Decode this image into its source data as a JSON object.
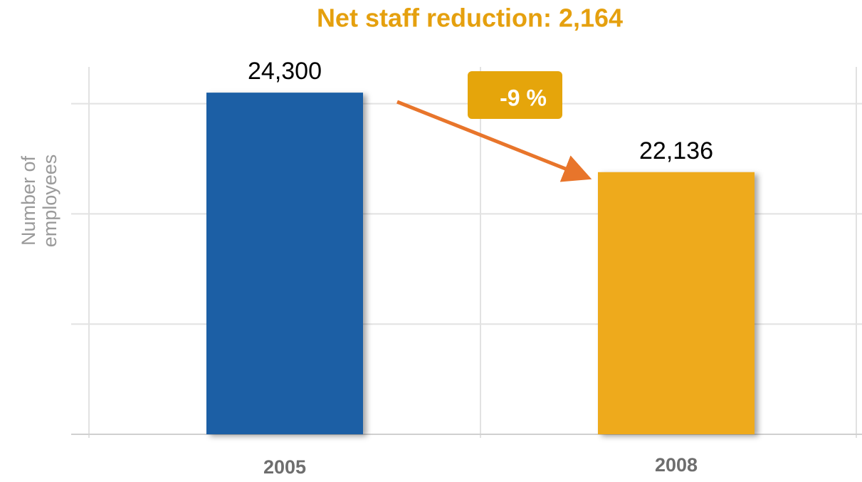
{
  "chart_data": {
    "type": "bar",
    "title": "Net staff reduction: 2,164",
    "y_label": "Number of employees",
    "categories": [
      "2005",
      "2008"
    ],
    "values": [
      24300,
      22136
    ],
    "value_labels": [
      "24,300",
      "22,136"
    ],
    "colors": [
      "#1e5fa5",
      "#eeaa1b"
    ],
    "annotation": "-9 %",
    "ylim": [
      15000,
      25000
    ],
    "yticks": [
      15000,
      18000,
      21000,
      24000
    ],
    "grid": true
  }
}
